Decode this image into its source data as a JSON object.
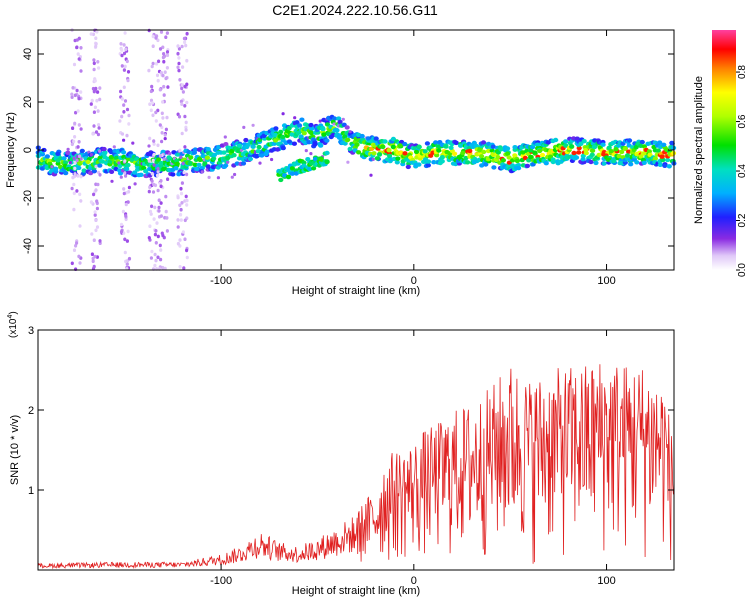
{
  "title": "C2E1.2024.222.10.56.G11",
  "chart_data": [
    {
      "type": "heatmap",
      "xlabel": "Height of straight line (km)",
      "ylabel": "Frequency (Hz)",
      "xlim": [
        -195,
        135
      ],
      "ylim": [
        -50,
        50
      ],
      "xticks": [
        -100,
        0,
        100
      ],
      "yticks": [
        -40,
        -20,
        0,
        20,
        40
      ],
      "colorbar": {
        "label": "Normalized spectral amplitude",
        "range": [
          0,
          0.97
        ],
        "ticks": [
          0,
          0.2,
          0.4,
          0.6,
          0.8
        ],
        "tick_labels": [
          "0.0",
          "0.2",
          "0.4",
          "0.6",
          "0.8"
        ]
      },
      "main_ridge": {
        "x": [
          -195,
          -180,
          -160,
          -140,
          -120,
          -100,
          -85,
          -70,
          -60,
          -50,
          -45,
          -40,
          -35,
          -30,
          -20,
          -10,
          0,
          10,
          20,
          40,
          50,
          60,
          80,
          100,
          120,
          135
        ],
        "y": [
          -4,
          -6,
          -4,
          -6,
          -5,
          -3,
          0,
          5,
          8,
          6,
          8,
          10,
          5,
          2,
          0,
          0,
          -3,
          -1,
          -1,
          -2,
          -4,
          -2,
          0,
          -1,
          -1,
          -2
        ]
      },
      "secondary_branch": {
        "x": [
          -70,
          -65,
          -60,
          -55,
          -50,
          -45
        ],
        "y": [
          -11,
          -9,
          -7,
          -6,
          -5,
          -3
        ]
      }
    },
    {
      "type": "line",
      "xlabel": "Height of straight line (km)",
      "ylabel": "SNR (10 * v/v)",
      "y_multiplier": "(x10",
      "y_multiplier_exp": "4",
      "y_multiplier_close": ")",
      "xlim": [
        -195,
        135
      ],
      "ylim": [
        0,
        3
      ],
      "xticks": [
        -100,
        0,
        100
      ],
      "yticks": [
        1,
        2,
        3
      ],
      "series": [
        {
          "color": "#e02020",
          "envelope_x": [
            -195,
            -150,
            -120,
            -100,
            -90,
            -80,
            -70,
            -60,
            -50,
            -40,
            -30,
            -25,
            -20,
            -15,
            -10,
            -5,
            0,
            5,
            10,
            20,
            30,
            40,
            50,
            60,
            70,
            80,
            90,
            100,
            110,
            120,
            130,
            135
          ],
          "envelope_y": [
            0.08,
            0.1,
            0.1,
            0.2,
            0.3,
            0.5,
            0.35,
            0.3,
            0.4,
            0.55,
            0.7,
            0.9,
            1.0,
            1.4,
            1.5,
            1.55,
            1.6,
            1.75,
            1.8,
            2.0,
            2.1,
            2.3,
            2.6,
            2.4,
            2.5,
            2.55,
            2.6,
            2.7,
            2.6,
            2.6,
            2.4,
            1.5
          ]
        }
      ]
    }
  ]
}
